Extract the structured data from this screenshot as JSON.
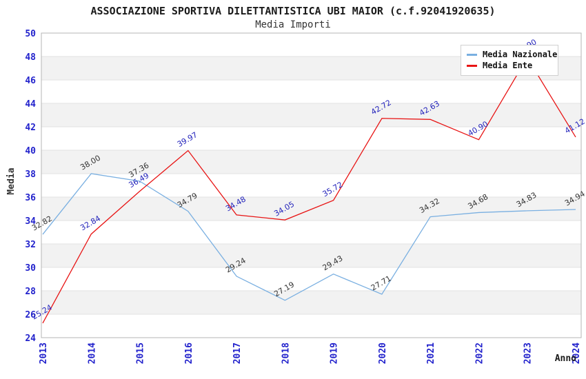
{
  "header": {
    "title": "ASSOCIAZIONE SPORTIVA DILETTANTISTICA UBI MAIOR (c.f.92041920635)",
    "subtitle": "Media Importi"
  },
  "chart_data": {
    "type": "line",
    "x": [
      "2013",
      "2014",
      "2015",
      "2016",
      "2017",
      "2018",
      "2019",
      "2020",
      "2021",
      "2022",
      "2023",
      "2024"
    ],
    "xlabel": "Anno",
    "ylabel": "Media",
    "ylim": [
      24,
      50
    ],
    "yticks": [
      24,
      26,
      28,
      30,
      32,
      34,
      36,
      38,
      40,
      42,
      44,
      46,
      48,
      50
    ],
    "grid": "horizontal gridlines with alternating background bands",
    "legend_position": "top-right",
    "series": [
      {
        "name": "Media Nazionale",
        "color": "#79AFE1",
        "label_color": "#333333",
        "values": [
          32.82,
          38.0,
          37.36,
          34.79,
          29.24,
          27.19,
          29.43,
          27.71,
          34.32,
          34.68,
          34.83,
          34.94
        ]
      },
      {
        "name": "Media Ente",
        "color": "#E81414",
        "label_color": "#2222BB",
        "values": [
          25.24,
          32.84,
          36.49,
          39.97,
          34.48,
          34.05,
          35.72,
          42.72,
          42.63,
          40.9,
          47.9,
          41.12
        ],
        "note": "2023 data label is mostly hidden behind the legend box; value estimated from line position"
      }
    ]
  },
  "theme": {
    "tick_label_color": "#2222CC",
    "grid_color": "#E2E2E2",
    "band_color": "#F2F2F2",
    "plot_border_color": "#B5B5B5",
    "background": "#FFFFFF"
  }
}
